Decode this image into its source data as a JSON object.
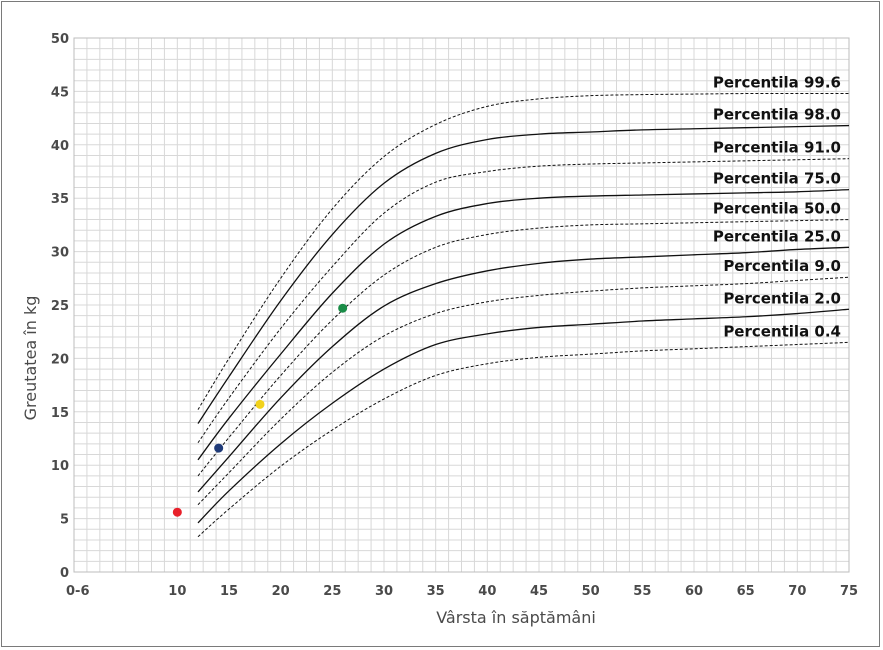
{
  "chart_data": {
    "type": "line",
    "title": "",
    "xlabel": "Vârsta în săptămâni",
    "ylabel": "Greutatea  în kg",
    "xlim": [
      0,
      75
    ],
    "ylim": [
      0,
      50
    ],
    "x_ticks": [
      {
        "value": 0,
        "label": "0-6"
      },
      {
        "value": 10,
        "label": "10"
      },
      {
        "value": 15,
        "label": "15"
      },
      {
        "value": 20,
        "label": "20"
      },
      {
        "value": 25,
        "label": "25"
      },
      {
        "value": 30,
        "label": "30"
      },
      {
        "value": 35,
        "label": "35"
      },
      {
        "value": 40,
        "label": "40"
      },
      {
        "value": 45,
        "label": "45"
      },
      {
        "value": 50,
        "label": "50"
      },
      {
        "value": 55,
        "label": "55"
      },
      {
        "value": 60,
        "label": "60"
      },
      {
        "value": 65,
        "label": "65"
      },
      {
        "value": 70,
        "label": "70"
      },
      {
        "value": 75,
        "label": "75"
      }
    ],
    "y_ticks": [
      0,
      5,
      10,
      15,
      20,
      25,
      30,
      35,
      40,
      45,
      50
    ],
    "grid": true,
    "x": [
      12,
      15,
      20,
      25,
      30,
      35,
      40,
      45,
      50,
      55,
      60,
      65,
      70,
      75
    ],
    "series": [
      {
        "name": "Percentila 99.6",
        "style": "dashed",
        "values": [
          15.2,
          20.0,
          27.5,
          34.0,
          38.9,
          41.9,
          43.6,
          44.3,
          44.6,
          44.7,
          44.75,
          44.8,
          44.8,
          44.8
        ]
      },
      {
        "name": "Percentila 98.0",
        "style": "solid",
        "values": [
          13.9,
          18.3,
          25.4,
          31.6,
          36.4,
          39.2,
          40.5,
          41.0,
          41.2,
          41.4,
          41.5,
          41.6,
          41.7,
          41.8
        ]
      },
      {
        "name": "Percentila 91.0",
        "style": "dashed",
        "values": [
          12.1,
          16.3,
          22.8,
          28.6,
          33.6,
          36.5,
          37.5,
          38.0,
          38.2,
          38.3,
          38.4,
          38.5,
          38.6,
          38.7
        ]
      },
      {
        "name": "Percentila 75.0",
        "style": "solid",
        "values": [
          10.5,
          14.4,
          20.4,
          26.1,
          30.7,
          33.3,
          34.5,
          35.0,
          35.2,
          35.3,
          35.4,
          35.5,
          35.6,
          35.8
        ]
      },
      {
        "name": "Percentila 50.0",
        "style": "dashed",
        "values": [
          9.0,
          12.6,
          18.4,
          23.6,
          27.8,
          30.4,
          31.6,
          32.2,
          32.5,
          32.6,
          32.7,
          32.8,
          32.9,
          33.0
        ]
      },
      {
        "name": "Percentila 25.0",
        "style": "solid",
        "values": [
          7.5,
          10.8,
          16.3,
          21.1,
          24.9,
          27.0,
          28.2,
          28.9,
          29.3,
          29.5,
          29.7,
          29.9,
          30.2,
          30.4
        ]
      },
      {
        "name": "Percentila 9.0",
        "style": "dashed",
        "values": [
          6.3,
          9.3,
          14.3,
          18.7,
          22.1,
          24.2,
          25.3,
          25.9,
          26.3,
          26.6,
          26.8,
          27.0,
          27.3,
          27.6
        ]
      },
      {
        "name": "Percentila 2.0",
        "style": "solid",
        "values": [
          4.6,
          7.6,
          12.0,
          15.8,
          19.0,
          21.3,
          22.3,
          22.9,
          23.2,
          23.5,
          23.7,
          23.9,
          24.2,
          24.6
        ]
      },
      {
        "name": "Percentila 0.4",
        "style": "dashed",
        "values": [
          3.3,
          5.9,
          9.9,
          13.3,
          16.2,
          18.4,
          19.5,
          20.1,
          20.4,
          20.7,
          20.9,
          21.1,
          21.3,
          21.5
        ]
      }
    ],
    "points": [
      {
        "x": 10,
        "y": 5.6,
        "color": "#e8202a"
      },
      {
        "x": 14,
        "y": 11.6,
        "color": "#1f3a78"
      },
      {
        "x": 18,
        "y": 15.7,
        "color": "#f2d21b"
      },
      {
        "x": 26,
        "y": 24.7,
        "color": "#1a8c47"
      }
    ]
  }
}
